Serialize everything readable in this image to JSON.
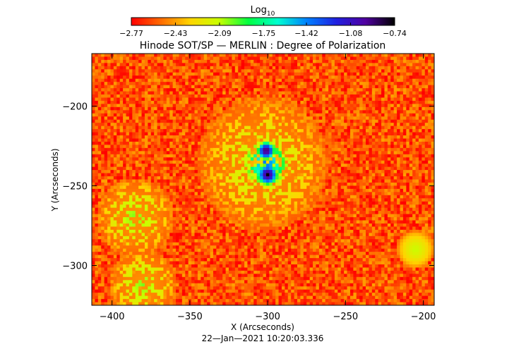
{
  "chart_data": {
    "type": "heatmap",
    "title": "Hinode SOT/SP — MERLIN : Degree of Polarization",
    "xlabel": "X (Arcseconds)",
    "ylabel": "Y (Arcseconds)",
    "timestamp": "22—Jan—2021 10:20:03.336",
    "xlim": [
      -413,
      -193
    ],
    "ylim": [
      -325,
      -167
    ],
    "x_ticks": [
      -400,
      -350,
      -300,
      -250,
      -200
    ],
    "x_tick_labels": [
      "−400",
      "−350",
      "−300",
      "−250",
      "−200"
    ],
    "y_ticks": [
      -200,
      -250,
      -300
    ],
    "y_tick_labels": [
      "−200",
      "−250",
      "−300"
    ],
    "colorbar": {
      "label_main": "Log",
      "label_sub": "10",
      "range": [
        -2.77,
        -0.74
      ],
      "tick_values": [
        -2.77,
        -2.43,
        -2.09,
        -1.75,
        -1.42,
        -1.08,
        -0.74
      ],
      "tick_labels": [
        "−2.77",
        "−2.43",
        "−2.09",
        "−1.75",
        "−1.42",
        "−1.08",
        "−0.74"
      ],
      "colormap": [
        "#ff0000",
        "#ff6a00",
        "#ffd400",
        "#c8ff00",
        "#00ff40",
        "#00ffd0",
        "#0080ff",
        "#2020e0",
        "#5000a0",
        "#000000"
      ]
    },
    "background_level": -2.6,
    "features": [
      {
        "name": "sunspot umbra north",
        "x": -301,
        "y": -228,
        "r": 6,
        "peak": -0.74
      },
      {
        "name": "sunspot umbra south",
        "x": -300,
        "y": -243,
        "r": 7,
        "peak": -0.74
      },
      {
        "name": "penumbra",
        "x": -301,
        "y": -236,
        "r": 16,
        "peak": -1.35
      },
      {
        "name": "plage",
        "x": -303,
        "y": -236,
        "r": 42,
        "peak": -2.05
      },
      {
        "name": "network west",
        "x": -385,
        "y": -270,
        "r": 25,
        "peak": -2.0
      },
      {
        "name": "network southwest",
        "x": -380,
        "y": -312,
        "r": 22,
        "peak": -2.0
      },
      {
        "name": "network east",
        "x": -205,
        "y": -290,
        "r": 12,
        "peak": -2.1
      }
    ]
  }
}
